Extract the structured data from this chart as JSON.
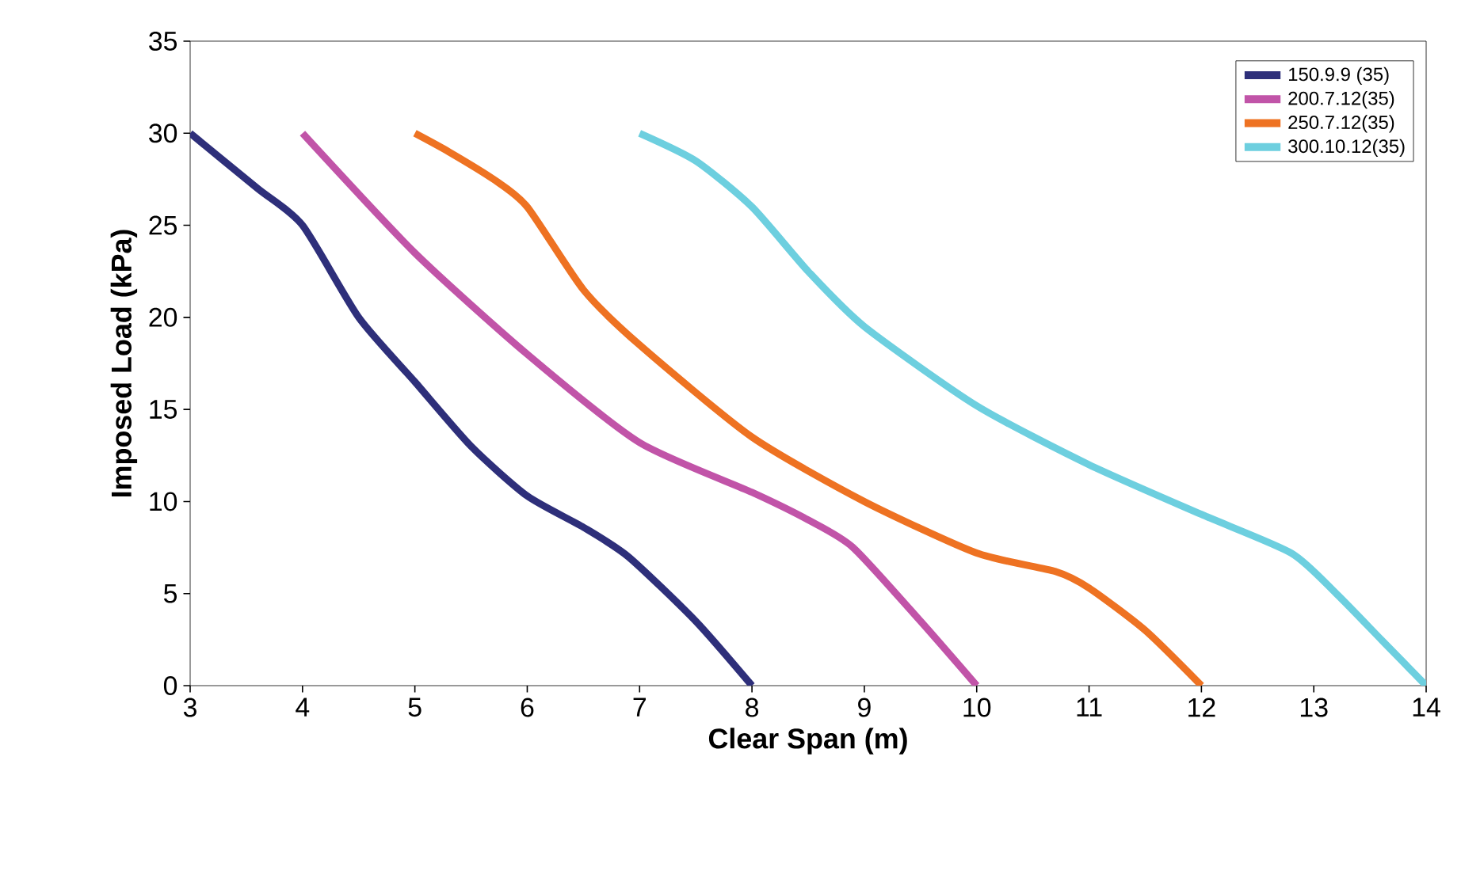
{
  "chart_data": {
    "type": "line",
    "xlabel": "Clear Span (m)",
    "ylabel": "Imposed Load (kPa)",
    "xlim": [
      3,
      14
    ],
    "ylim": [
      0,
      35
    ],
    "xticks": [
      3,
      4,
      5,
      6,
      7,
      8,
      9,
      10,
      11,
      12,
      13,
      14
    ],
    "yticks": [
      0,
      5,
      10,
      15,
      20,
      25,
      30,
      35
    ],
    "grid": false,
    "legend": "top right",
    "marker": "none",
    "line_style": "solid",
    "series": [
      {
        "name": "150.9.9 (35)",
        "color": "#2e2f7a",
        "x": [
          3,
          3.6,
          4,
          4.5,
          5,
          5.5,
          6,
          6.5,
          6.9,
          7.5,
          8
        ],
        "values": [
          30,
          27,
          25,
          20,
          16.5,
          13,
          10.3,
          8.6,
          7,
          3.5,
          0
        ]
      },
      {
        "name": "200.7.12(35)",
        "color": "#c154a8",
        "x": [
          4,
          5,
          6,
          7,
          8,
          8.5,
          8.9,
          9.5,
          10
        ],
        "values": [
          30,
          23.5,
          18,
          13.2,
          10.5,
          9,
          7.5,
          3.5,
          0
        ]
      },
      {
        "name": "250.7.12(35)",
        "color": "#ee7222",
        "x": [
          5,
          5.3,
          5.7,
          6,
          6.5,
          7,
          8,
          9,
          10,
          10.7,
          11,
          11.5,
          12
        ],
        "values": [
          30,
          29,
          27.5,
          26,
          21.5,
          18.5,
          13.5,
          10,
          7.2,
          6.2,
          5.3,
          3,
          0
        ]
      },
      {
        "name": "300.10.12(35)",
        "color": "#6dcfdf",
        "x": [
          7,
          7.5,
          8,
          8.5,
          9,
          10,
          11,
          12,
          12.8,
          13.2,
          13.6,
          14
        ],
        "values": [
          30,
          28.5,
          26,
          22.5,
          19.5,
          15.2,
          12,
          9.3,
          7.2,
          5,
          2.5,
          0
        ]
      }
    ]
  }
}
